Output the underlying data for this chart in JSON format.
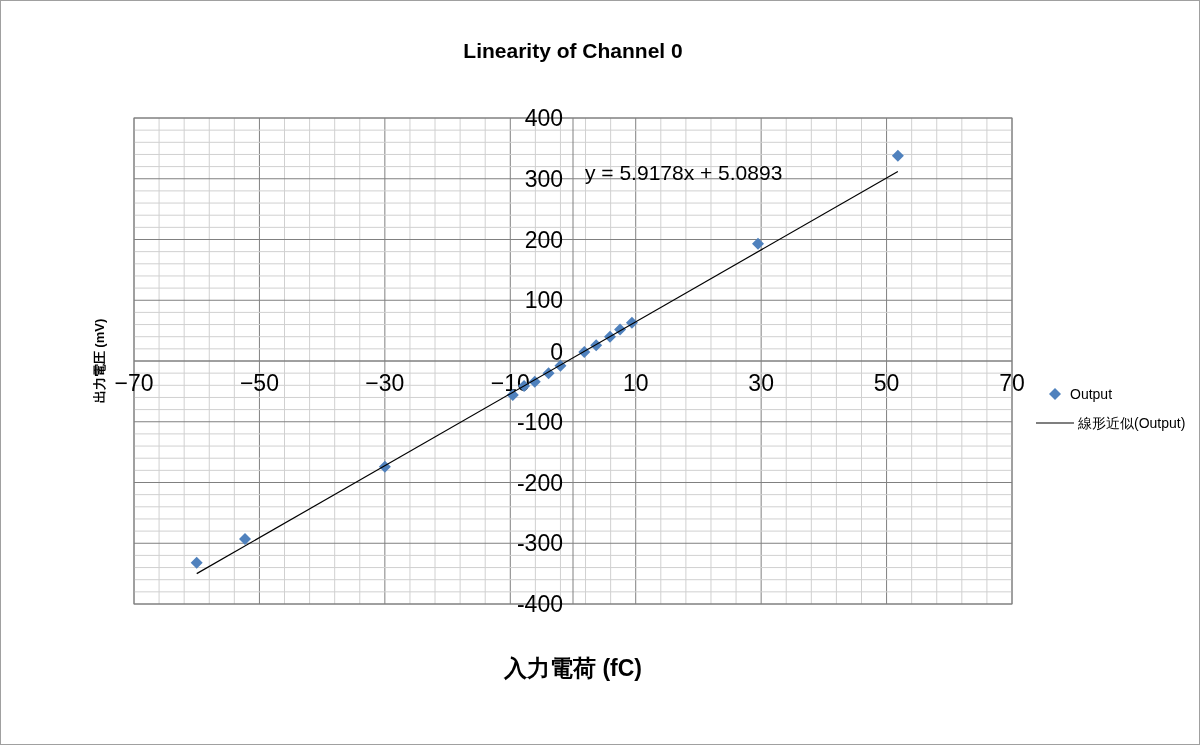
{
  "chart_data": {
    "type": "scatter",
    "title": "Linearity of Channel 0",
    "xlabel": "入力電荷 (fC)",
    "ylabel": "出力電圧 (mV)",
    "xlim": [
      -70,
      70
    ],
    "ylim": [
      -400,
      400
    ],
    "xticks": [
      {
        "value": -70,
        "label": "−70"
      },
      {
        "value": -50,
        "label": "−50"
      },
      {
        "value": -30,
        "label": "−30"
      },
      {
        "value": -10,
        "label": "−10"
      },
      {
        "value": 10,
        "label": "10"
      },
      {
        "value": 30,
        "label": "30"
      },
      {
        "value": 50,
        "label": "50"
      },
      {
        "value": 70,
        "label": "70"
      }
    ],
    "yticks": [
      -400,
      -300,
      -200,
      -100,
      0,
      100,
      200,
      300,
      400
    ],
    "grid": true,
    "legend": "right",
    "marker": "diamond",
    "annotations": [
      "y = 5.9178x + 5.0893"
    ],
    "series": [
      {
        "name": "Output",
        "color": "#4f81bd",
        "x": [
          -60,
          -52.3,
          -30,
          -9.6,
          -7.8,
          -6.1,
          -3.9,
          -2,
          1.8,
          3.7,
          5.9,
          7.5,
          9.4,
          29.5,
          51.8
        ],
        "values": [
          -332,
          -293,
          -174,
          -56,
          -41,
          -34,
          -20,
          -8,
          15,
          26,
          40,
          52,
          63,
          193,
          338
        ]
      },
      {
        "name": "線形近似(Output)",
        "type": "line",
        "color": "#000000",
        "marker": "none",
        "x": [
          -60,
          51.8
        ],
        "values": [
          -350,
          312
        ]
      }
    ]
  }
}
